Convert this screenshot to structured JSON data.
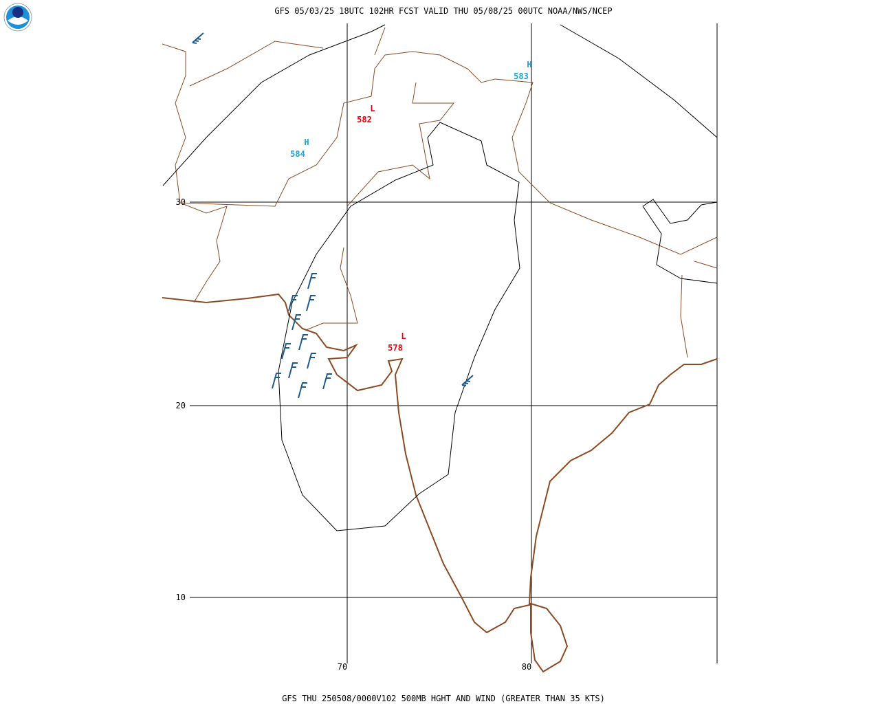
{
  "header": {
    "title": "GFS 05/03/25 18UTC 102HR FCST VALID THU 05/08/25 00UTC NOAA/NWS/NCEP"
  },
  "map": {
    "latitudes": [
      30,
      20,
      10
    ],
    "longitudes": [
      70,
      80
    ],
    "centers": [
      {
        "symbol": "H",
        "value": 583
      },
      {
        "symbol": "L",
        "value": 582
      },
      {
        "symbol": "H",
        "value": 584
      },
      {
        "symbol": "L",
        "value": 578
      }
    ]
  },
  "footer": {
    "caption": "GFS THU 250508/0000V102 500MB HGHT AND WIND (GREATER THAN 35 KTS)"
  }
}
